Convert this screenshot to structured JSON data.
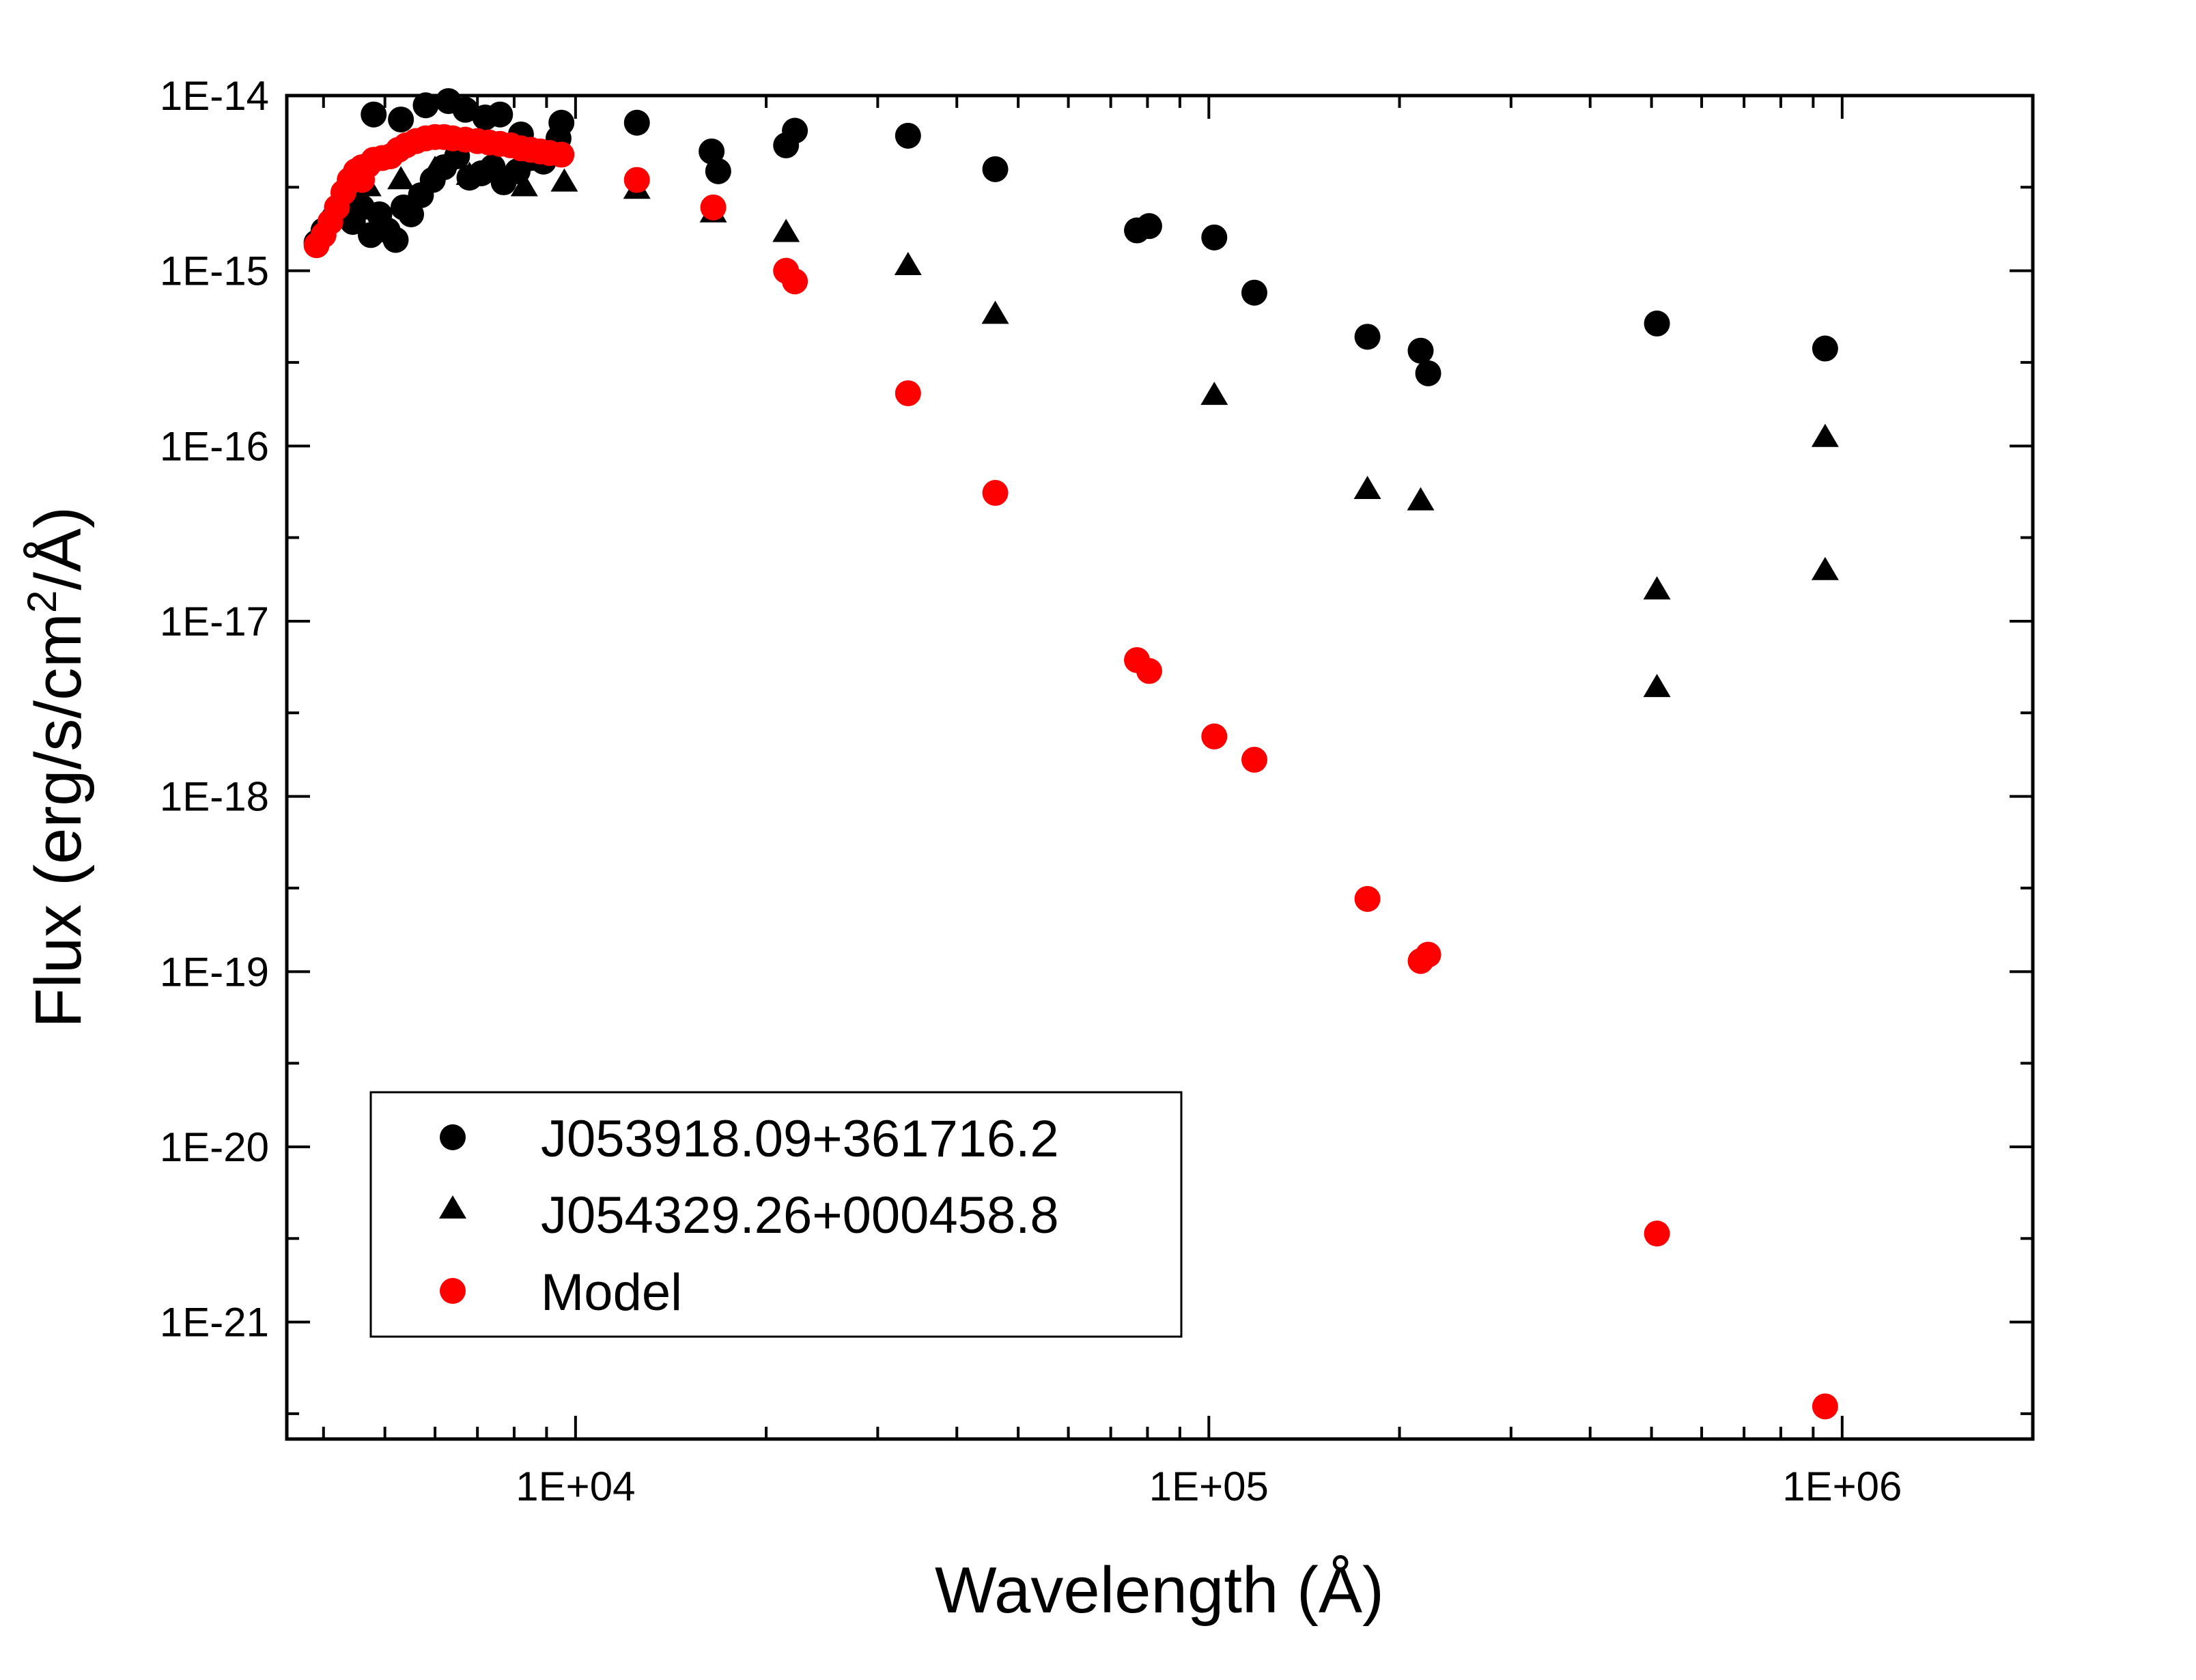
{
  "chart_data": {
    "type": "scatter",
    "xscale": "log",
    "yscale": "log",
    "xlabel": "Wavelength  (Å)",
    "ylabel_main": "Flux  (erg/s/cm",
    "ylabel_sup": "2",
    "ylabel_tail": "/Å)",
    "xlim": [
      3500,
      2000000
    ],
    "ylim": [
      2.15e-22,
      1e-14
    ],
    "xticks": [
      {
        "value": 10000,
        "label": "1E+04"
      },
      {
        "value": 100000,
        "label": "1E+05"
      },
      {
        "value": 1000000,
        "label": "1E+06"
      }
    ],
    "yticks": [
      {
        "value": 1e-14,
        "label": "1E-14"
      },
      {
        "value": 1e-15,
        "label": "1E-15"
      },
      {
        "value": 1e-16,
        "label": "1E-16"
      },
      {
        "value": 1e-17,
        "label": "1E-17"
      },
      {
        "value": 1e-18,
        "label": "1E-18"
      },
      {
        "value": 1e-19,
        "label": "1E-19"
      },
      {
        "value": 1e-20,
        "label": "1E-20"
      },
      {
        "value": 1e-21,
        "label": "1E-21"
      }
    ],
    "legend_position": "bottom-left",
    "series": [
      {
        "name": "J053918.09+361716.2",
        "marker": "circle",
        "color": "#000000",
        "points": [
          [
            3900,
            1.45e-15
          ],
          [
            4000,
            1.7e-15
          ],
          [
            4150,
            2e-15
          ],
          [
            4300,
            2.2e-15
          ],
          [
            4450,
            1.9e-15
          ],
          [
            4600,
            2.3e-15
          ],
          [
            4750,
            1.6e-15
          ],
          [
            4900,
            2.1e-15
          ],
          [
            5050,
            1.7e-15
          ],
          [
            5200,
            1.5e-15
          ],
          [
            5350,
            2.3e-15
          ],
          [
            5500,
            2.1e-15
          ],
          [
            5700,
            2.7e-15
          ],
          [
            5950,
            3.3e-15
          ],
          [
            6200,
            3.9e-15
          ],
          [
            6500,
            4.5e-15
          ],
          [
            6800,
            3.4e-15
          ],
          [
            7100,
            3.6e-15
          ],
          [
            7400,
            3.9e-15
          ],
          [
            7700,
            3.2e-15
          ],
          [
            8100,
            3.7e-15
          ],
          [
            8500,
            4.4e-15
          ],
          [
            8900,
            4.2e-15
          ],
          [
            9400,
            5.7e-15
          ],
          [
            4800,
            7.8e-15
          ],
          [
            5300,
            7.3e-15
          ],
          [
            5800,
            8.8e-15
          ],
          [
            6300,
            9.3e-15
          ],
          [
            6700,
            8.3e-15
          ],
          [
            7200,
            7.5e-15
          ],
          [
            7600,
            7.8e-15
          ],
          [
            8200,
            6e-15
          ],
          [
            9500,
            7e-15
          ],
          [
            12500,
            7e-15
          ],
          [
            16400,
            4.8e-15
          ],
          [
            16800,
            3.7e-15
          ],
          [
            21500,
            5.2e-15
          ],
          [
            22200,
            6.3e-15
          ],
          [
            33500,
            5.9e-15
          ],
          [
            46000,
            3.8e-15
          ],
          [
            77000,
            1.7e-15
          ],
          [
            80500,
            1.8e-15
          ],
          [
            102000,
            1.55e-15
          ],
          [
            118000,
            7.5e-16
          ],
          [
            178000,
            4.2e-16
          ],
          [
            216000,
            3.5e-16
          ],
          [
            222000,
            2.6e-16
          ],
          [
            510000,
            5e-16
          ],
          [
            940000,
            3.6e-16
          ]
        ]
      },
      {
        "name": "J054329.26+000458.8",
        "marker": "triangle",
        "color": "#000000",
        "points": [
          [
            4700,
            3.1e-15
          ],
          [
            5300,
            3.4e-15
          ],
          [
            6000,
            3.9e-15
          ],
          [
            6800,
            3.6e-15
          ],
          [
            8300,
            3.1e-15
          ],
          [
            9600,
            3.3e-15
          ],
          [
            12500,
            3e-15
          ],
          [
            16500,
            2.2e-15
          ],
          [
            21500,
            1.7e-15
          ],
          [
            33500,
            1.1e-15
          ],
          [
            46000,
            5.8e-16
          ],
          [
            102000,
            2e-16
          ],
          [
            178000,
            5.8e-17
          ],
          [
            216000,
            5e-17
          ],
          [
            510000,
            1.55e-17
          ],
          [
            510000,
            4.3e-18
          ],
          [
            940000,
            1.15e-16
          ],
          [
            940000,
            2e-17
          ]
        ]
      },
      {
        "name": "Model",
        "marker": "circle",
        "color": "#ff0000",
        "points": [
          [
            3900,
            1.4e-15
          ],
          [
            4000,
            1.6e-15
          ],
          [
            4100,
            1.9e-15
          ],
          [
            4200,
            2.3e-15
          ],
          [
            4300,
            2.8e-15
          ],
          [
            4400,
            3.3e-15
          ],
          [
            4500,
            3.7e-15
          ],
          [
            4600,
            3.9e-15
          ],
          [
            4700,
            4e-15
          ],
          [
            4800,
            4.3e-15
          ],
          [
            4950,
            4.4e-15
          ],
          [
            5100,
            4.5e-15
          ],
          [
            5250,
            4.9e-15
          ],
          [
            5400,
            5.2e-15
          ],
          [
            5600,
            5.5e-15
          ],
          [
            5800,
            5.7e-15
          ],
          [
            6000,
            5.8e-15
          ],
          [
            6200,
            5.8e-15
          ],
          [
            6400,
            5.7e-15
          ],
          [
            6700,
            5.6e-15
          ],
          [
            7000,
            5.5e-15
          ],
          [
            7300,
            5.4e-15
          ],
          [
            7600,
            5.3e-15
          ],
          [
            7900,
            5.2e-15
          ],
          [
            8200,
            5e-15
          ],
          [
            8500,
            4.9e-15
          ],
          [
            8800,
            4.8e-15
          ],
          [
            9100,
            4.7e-15
          ],
          [
            9500,
            4.6e-15
          ],
          [
            4600,
            3.3e-15
          ],
          [
            12500,
            3.3e-15
          ],
          [
            16500,
            2.3e-15
          ],
          [
            21500,
            1e-15
          ],
          [
            22200,
            8.7e-16
          ],
          [
            33500,
            2e-16
          ],
          [
            46000,
            5.4e-17
          ],
          [
            77000,
            6e-18
          ],
          [
            80500,
            5.2e-18
          ],
          [
            102000,
            2.2e-18
          ],
          [
            118000,
            1.62e-18
          ],
          [
            178000,
            2.6e-19
          ],
          [
            216000,
            1.15e-19
          ],
          [
            222000,
            1.25e-19
          ],
          [
            510000,
            3.2e-21
          ],
          [
            940000,
            3.3e-22
          ]
        ]
      }
    ]
  }
}
